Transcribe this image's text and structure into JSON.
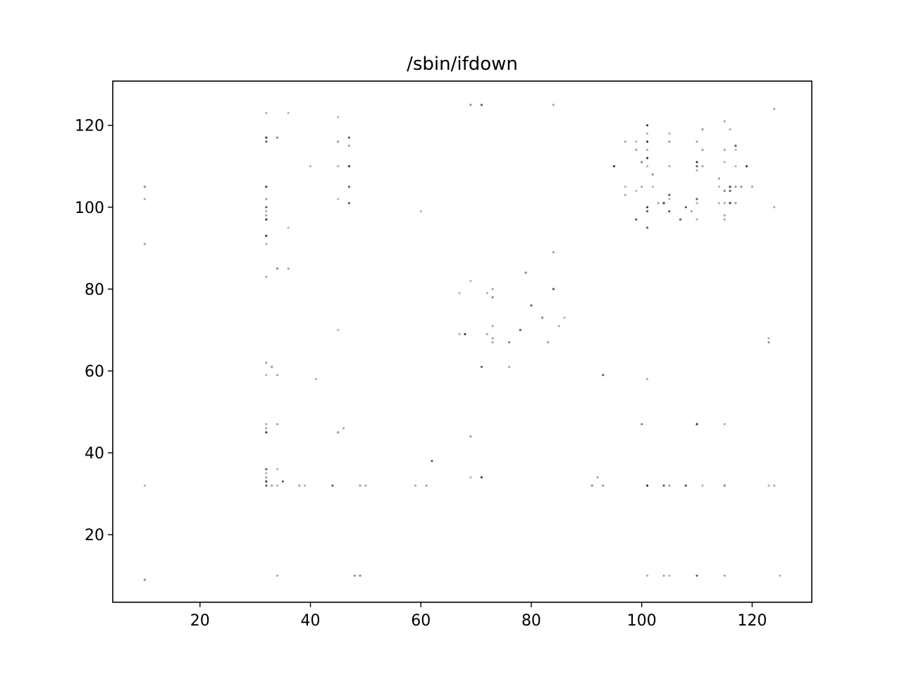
{
  "chart_data": {
    "type": "scatter",
    "title": "/sbin/ifdown",
    "xlabel": "",
    "ylabel": "",
    "xlim": [
      4.2,
      130.8
    ],
    "ylim": [
      3.5,
      130.8
    ],
    "xticks": [
      20,
      40,
      60,
      80,
      100,
      120
    ],
    "yticks": [
      20,
      40,
      60,
      80,
      100,
      120
    ],
    "grid": false,
    "legend": "none",
    "palette": [
      "#3a3a5a",
      "#7a6f7a",
      "#8a94b4",
      "#a58a8a",
      "#93a58a",
      "#b49aa5",
      "#6f8f8f",
      "#9a9a7a",
      "#5a3a4a",
      "#8fb8a8",
      "#b8a870",
      "#1a1a3a"
    ],
    "points": [
      [
        10,
        105
      ],
      [
        10,
        102
      ],
      [
        10,
        91
      ],
      [
        10,
        32
      ],
      [
        10,
        9
      ],
      [
        32,
        123
      ],
      [
        32,
        117
      ],
      [
        32,
        116
      ],
      [
        32,
        105
      ],
      [
        32,
        102
      ],
      [
        32,
        100
      ],
      [
        32,
        99
      ],
      [
        32,
        98
      ],
      [
        32,
        97
      ],
      [
        32,
        93
      ],
      [
        32,
        91
      ],
      [
        32,
        83
      ],
      [
        32,
        62
      ],
      [
        32,
        59
      ],
      [
        32,
        47
      ],
      [
        32,
        46
      ],
      [
        32,
        45
      ],
      [
        32,
        36
      ],
      [
        32,
        35
      ],
      [
        32,
        34
      ],
      [
        32,
        33
      ],
      [
        32,
        32
      ],
      [
        33,
        61
      ],
      [
        33,
        32
      ],
      [
        34,
        117
      ],
      [
        34,
        85
      ],
      [
        34,
        59
      ],
      [
        34,
        47
      ],
      [
        34,
        36
      ],
      [
        34,
        32
      ],
      [
        34,
        10
      ],
      [
        35,
        33
      ],
      [
        36,
        123
      ],
      [
        36,
        95
      ],
      [
        36,
        85
      ],
      [
        38,
        32
      ],
      [
        39,
        32
      ],
      [
        40,
        110
      ],
      [
        41,
        58
      ],
      [
        44,
        32
      ],
      [
        45,
        122
      ],
      [
        45,
        116
      ],
      [
        45,
        110
      ],
      [
        45,
        102
      ],
      [
        45,
        70
      ],
      [
        45,
        45
      ],
      [
        46,
        46
      ],
      [
        47,
        117
      ],
      [
        47,
        115
      ],
      [
        47,
        110
      ],
      [
        47,
        105
      ],
      [
        47,
        101
      ],
      [
        48,
        10
      ],
      [
        49,
        32
      ],
      [
        49,
        10
      ],
      [
        50,
        32
      ],
      [
        59,
        32
      ],
      [
        60,
        99
      ],
      [
        61,
        32
      ],
      [
        62,
        38
      ],
      [
        67,
        79
      ],
      [
        67,
        69
      ],
      [
        68,
        69
      ],
      [
        69,
        125
      ],
      [
        69,
        82
      ],
      [
        69,
        44
      ],
      [
        69,
        34
      ],
      [
        71,
        125
      ],
      [
        71,
        61
      ],
      [
        71,
        34
      ],
      [
        72,
        79
      ],
      [
        72,
        69
      ],
      [
        73,
        80
      ],
      [
        73,
        78
      ],
      [
        73,
        71
      ],
      [
        73,
        68
      ],
      [
        73,
        67
      ],
      [
        76,
        67
      ],
      [
        76,
        61
      ],
      [
        78,
        70
      ],
      [
        79,
        84
      ],
      [
        80,
        76
      ],
      [
        82,
        73
      ],
      [
        83,
        67
      ],
      [
        84,
        125
      ],
      [
        84,
        89
      ],
      [
        84,
        80
      ],
      [
        85,
        71
      ],
      [
        86,
        73
      ],
      [
        91,
        32
      ],
      [
        92,
        34
      ],
      [
        93,
        59
      ],
      [
        93,
        32
      ],
      [
        95,
        110
      ],
      [
        97,
        116
      ],
      [
        97,
        105
      ],
      [
        97,
        103
      ],
      [
        99,
        116
      ],
      [
        99,
        114
      ],
      [
        99,
        104
      ],
      [
        99,
        97
      ],
      [
        100,
        111
      ],
      [
        100,
        105
      ],
      [
        100,
        47
      ],
      [
        101,
        120
      ],
      [
        101,
        118
      ],
      [
        101,
        116
      ],
      [
        101,
        114
      ],
      [
        101,
        112
      ],
      [
        101,
        110
      ],
      [
        101,
        100
      ],
      [
        101,
        99
      ],
      [
        101,
        95
      ],
      [
        101,
        58
      ],
      [
        101,
        32
      ],
      [
        101,
        10
      ],
      [
        102,
        108
      ],
      [
        102,
        105
      ],
      [
        103,
        101
      ],
      [
        104,
        101
      ],
      [
        104,
        32
      ],
      [
        104,
        10
      ],
      [
        105,
        118
      ],
      [
        105,
        116
      ],
      [
        105,
        110
      ],
      [
        105,
        103
      ],
      [
        105,
        102
      ],
      [
        105,
        99
      ],
      [
        105,
        32
      ],
      [
        105,
        10
      ],
      [
        107,
        97
      ],
      [
        108,
        100
      ],
      [
        108,
        32
      ],
      [
        109,
        99
      ],
      [
        110,
        116
      ],
      [
        110,
        111
      ],
      [
        110,
        110
      ],
      [
        110,
        109
      ],
      [
        110,
        102
      ],
      [
        110,
        101
      ],
      [
        110,
        97
      ],
      [
        110,
        47
      ],
      [
        110,
        10
      ],
      [
        111,
        119
      ],
      [
        111,
        114
      ],
      [
        111,
        110
      ],
      [
        111,
        32
      ],
      [
        114,
        107
      ],
      [
        114,
        105
      ],
      [
        114,
        101
      ],
      [
        115,
        121
      ],
      [
        115,
        114
      ],
      [
        115,
        111
      ],
      [
        115,
        104
      ],
      [
        115,
        101
      ],
      [
        115,
        98
      ],
      [
        115,
        97
      ],
      [
        115,
        47
      ],
      [
        115,
        32
      ],
      [
        115,
        10
      ],
      [
        116,
        119
      ],
      [
        116,
        105
      ],
      [
        116,
        104
      ],
      [
        116,
        101
      ],
      [
        117,
        115
      ],
      [
        117,
        114
      ],
      [
        117,
        110
      ],
      [
        117,
        105
      ],
      [
        117,
        101
      ],
      [
        118,
        105
      ],
      [
        119,
        110
      ],
      [
        120,
        105
      ],
      [
        123,
        68
      ],
      [
        123,
        67
      ],
      [
        123,
        32
      ],
      [
        124,
        124
      ],
      [
        124,
        100
      ],
      [
        124,
        32
      ],
      [
        125,
        10
      ]
    ]
  }
}
